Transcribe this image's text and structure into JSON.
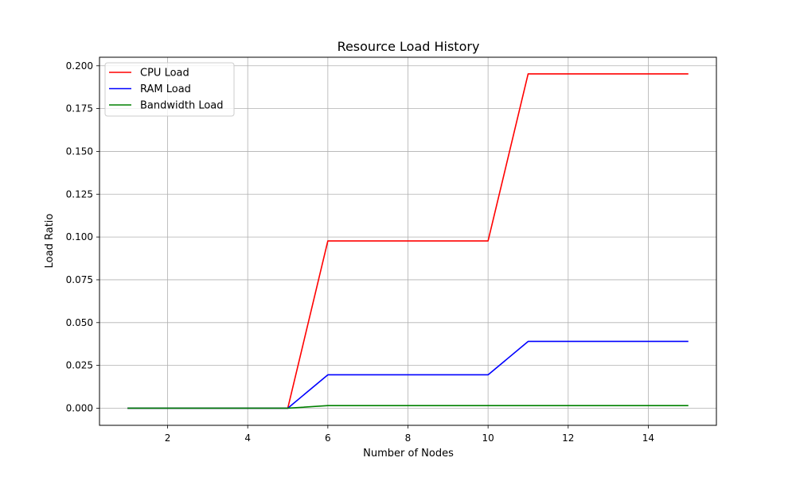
{
  "chart_data": {
    "type": "line",
    "title": "Resource Load History",
    "xlabel": "Number of Nodes",
    "ylabel": "Load Ratio",
    "xlim": [
      0.3,
      15.7
    ],
    "ylim": [
      -0.01,
      0.205
    ],
    "xticks": [
      2,
      4,
      6,
      8,
      10,
      12,
      14
    ],
    "xtick_labels": [
      "2",
      "4",
      "6",
      "8",
      "10",
      "12",
      "14"
    ],
    "yticks": [
      0.0,
      0.025,
      0.05,
      0.075,
      0.1,
      0.125,
      0.15,
      0.175,
      0.2
    ],
    "ytick_labels": [
      "0.000",
      "0.025",
      "0.050",
      "0.075",
      "0.100",
      "0.125",
      "0.150",
      "0.175",
      "0.200"
    ],
    "grid": true,
    "legend_position": "top-left",
    "x": [
      1,
      2,
      3,
      4,
      5,
      6,
      7,
      8,
      9,
      10,
      11,
      12,
      13,
      14,
      15
    ],
    "series": [
      {
        "name": "CPU Load",
        "color": "#ff0000",
        "values": [
          0,
          0,
          0,
          0,
          0,
          0.0977,
          0.0977,
          0.0977,
          0.0977,
          0.0977,
          0.1953,
          0.1953,
          0.1953,
          0.1953,
          0.1953
        ]
      },
      {
        "name": "RAM Load",
        "color": "#0000ff",
        "values": [
          0,
          0,
          0,
          0,
          0,
          0.0195,
          0.0195,
          0.0195,
          0.0195,
          0.0195,
          0.039,
          0.039,
          0.039,
          0.039,
          0.039
        ]
      },
      {
        "name": "Bandwidth Load",
        "color": "#008000",
        "values": [
          0,
          0,
          0,
          0,
          0,
          0.0015,
          0.0015,
          0.0015,
          0.0015,
          0.0015,
          0.0015,
          0.0015,
          0.0015,
          0.0015,
          0.0015
        ]
      }
    ]
  }
}
